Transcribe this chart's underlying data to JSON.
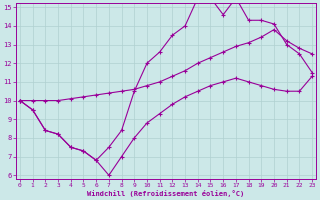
{
  "xlabel": "Windchill (Refroidissement éolien,°C)",
  "x_values": [
    0,
    1,
    2,
    3,
    4,
    5,
    6,
    7,
    8,
    9,
    10,
    11,
    12,
    13,
    14,
    15,
    16,
    17,
    18,
    19,
    20,
    21,
    22,
    23
  ],
  "line1_y": [
    10.0,
    9.5,
    8.4,
    8.2,
    7.5,
    7.3,
    6.8,
    7.5,
    8.4,
    10.5,
    12.0,
    12.6,
    13.5,
    14.0,
    15.5,
    15.5,
    14.6,
    15.5,
    14.3,
    14.3,
    14.1,
    13.0,
    12.5,
    11.5
  ],
  "line2_y": [
    10.0,
    10.0,
    10.0,
    10.0,
    10.1,
    10.2,
    10.3,
    10.4,
    10.5,
    10.6,
    10.8,
    11.0,
    11.3,
    11.6,
    12.0,
    12.3,
    12.6,
    12.9,
    13.1,
    13.4,
    13.8,
    13.2,
    12.8,
    12.5
  ],
  "line3_y": [
    10.0,
    9.5,
    8.4,
    8.2,
    7.5,
    7.3,
    6.8,
    6.0,
    7.0,
    8.0,
    8.8,
    9.3,
    9.8,
    10.2,
    10.5,
    10.8,
    11.0,
    11.2,
    11.0,
    10.8,
    10.6,
    10.5,
    10.5,
    11.3
  ],
  "bg_color": "#cce8e8",
  "grid_color": "#b0d0d0",
  "line_color": "#990099",
  "xlim_min": -0.3,
  "xlim_max": 23.3,
  "ylim_min": 5.8,
  "ylim_max": 15.2,
  "yticks": [
    6,
    7,
    8,
    9,
    10,
    11,
    12,
    13,
    14,
    15
  ],
  "xticks": [
    0,
    1,
    2,
    3,
    4,
    5,
    6,
    7,
    8,
    9,
    10,
    11,
    12,
    13,
    14,
    15,
    16,
    17,
    18,
    19,
    20,
    21,
    22,
    23
  ]
}
